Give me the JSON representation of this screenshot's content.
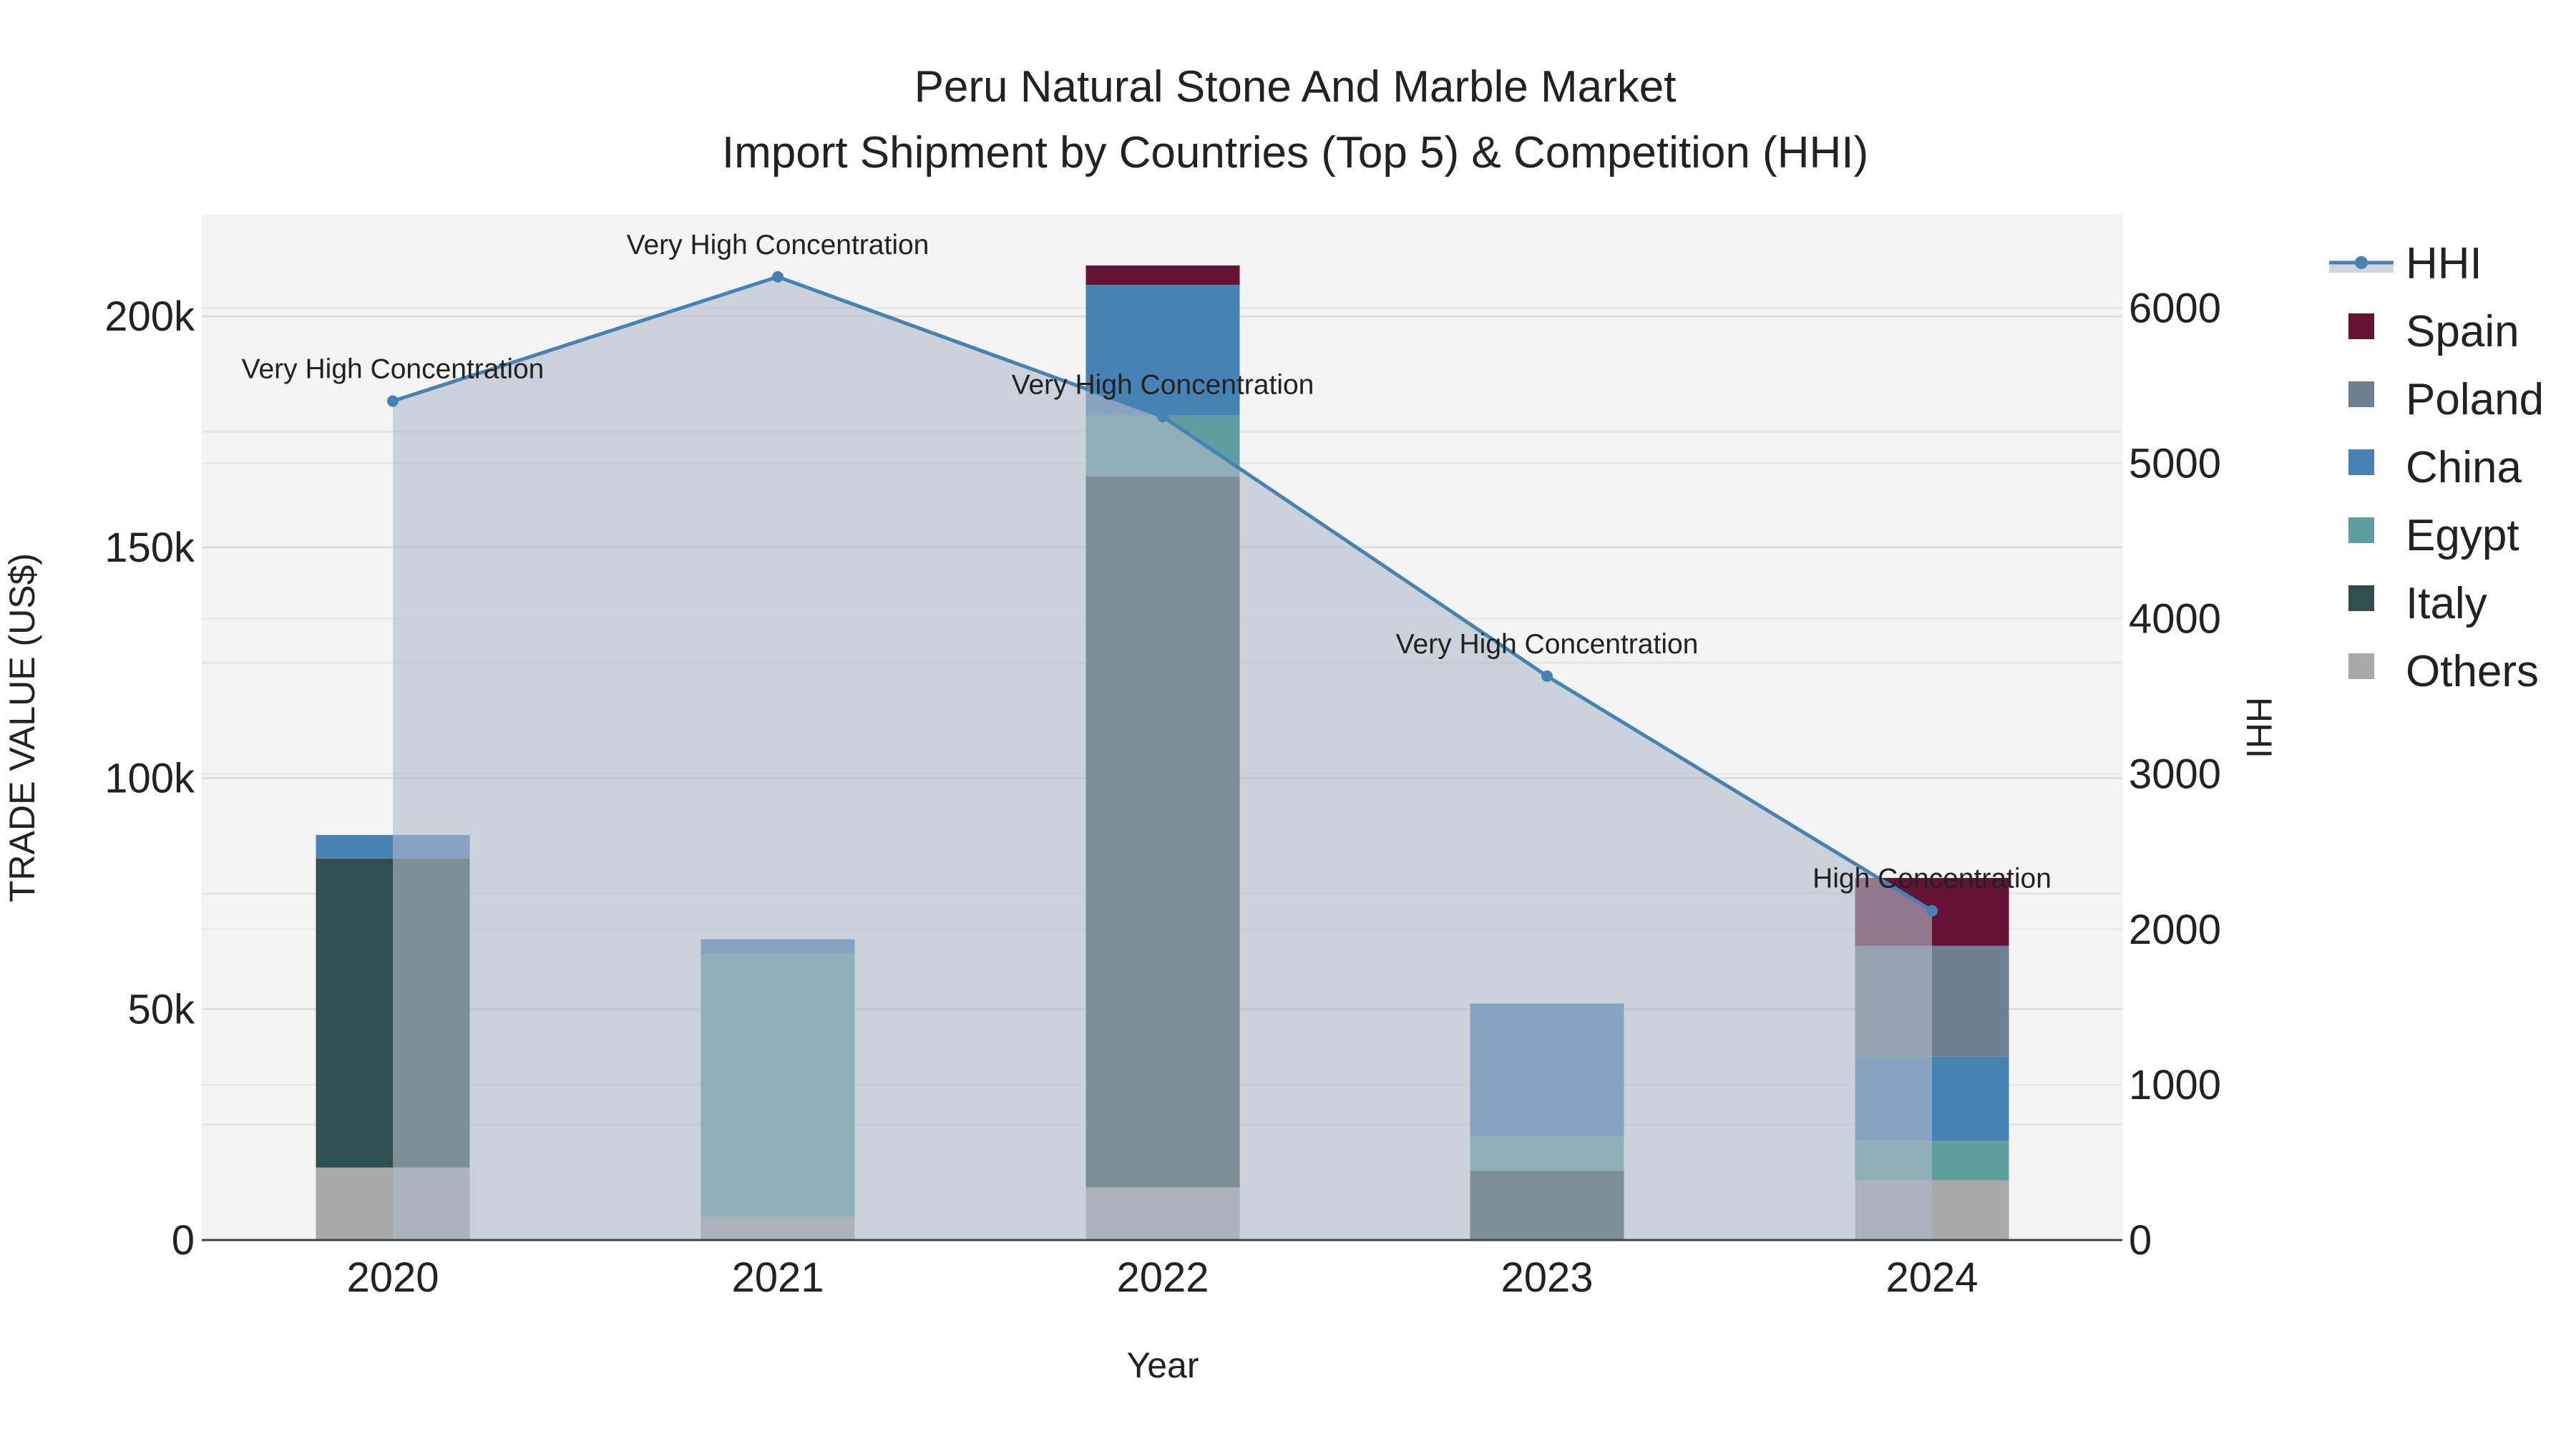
{
  "chart_data": {
    "type": "bar",
    "title_line1": "Peru Natural Stone And Marble Market",
    "title_line2": "Import Shipment by Countries (Top 5) & Competition (HHI)",
    "xlabel": "Year",
    "ylabel": "TRADE VALUE (US$)",
    "y2label": "HHI",
    "ylim": [
      0,
      222000
    ],
    "y2lim": [
      0,
      6600
    ],
    "yticks": [
      0,
      50000,
      100000,
      150000,
      200000
    ],
    "ytick_labels": [
      "0",
      "50k",
      "100k",
      "150k",
      "200k"
    ],
    "y2ticks": [
      0,
      1000,
      2000,
      3000,
      4000,
      5000,
      6000
    ],
    "y2tick_labels": [
      "0",
      "1000",
      "2000",
      "3000",
      "4000",
      "5000",
      "6000"
    ],
    "categories": [
      "2020",
      "2021",
      "2022",
      "2023",
      "2024"
    ],
    "stack_order": [
      "Others",
      "Italy",
      "Egypt",
      "China",
      "Poland",
      "Spain"
    ],
    "series": [
      {
        "name": "Others",
        "color": "#A9A9A9",
        "values": [
          15700,
          5000,
          11400,
          0,
          12900
        ]
      },
      {
        "name": "Italy",
        "color": "#2F4F4F",
        "values": [
          66900,
          0,
          153900,
          15000,
          0
        ]
      },
      {
        "name": "Egypt",
        "color": "#5F9EA0",
        "values": [
          0,
          56900,
          13200,
          7500,
          8600
        ]
      },
      {
        "name": "China",
        "color": "#4682B4",
        "values": [
          5100,
          3200,
          28300,
          28700,
          18200
        ]
      },
      {
        "name": "Poland",
        "color": "#6E7F8F",
        "values": [
          0,
          0,
          0,
          0,
          24000
        ]
      },
      {
        "name": "Spain",
        "color": "#641335",
        "values": [
          0,
          0,
          4200,
          0,
          14700
        ]
      }
    ],
    "hhi": {
      "name": "HHI",
      "color": "#4682B4",
      "values": [
        5400,
        6200,
        5300,
        3630,
        2120
      ],
      "annotations": [
        "Very High Concentration",
        "Very High Concentration",
        "Very High Concentration",
        "Very High Concentration",
        "High Concentration"
      ]
    },
    "legend": [
      "HHI",
      "Spain",
      "Poland",
      "China",
      "Egypt",
      "Italy",
      "Others"
    ],
    "legend_placement": "right",
    "grid": true
  }
}
